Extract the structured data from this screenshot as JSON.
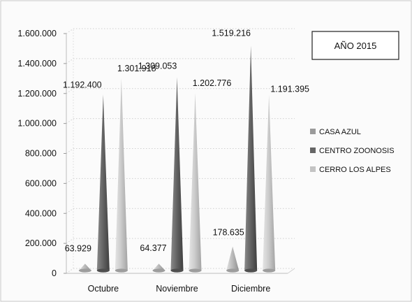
{
  "chart_data": {
    "type": "bar",
    "style": "3d-cone",
    "title": "AÑO 2015",
    "xlabel": "",
    "ylabel": "",
    "ylim": [
      0,
      1600000
    ],
    "yticks": [
      0,
      200000,
      400000,
      600000,
      800000,
      1000000,
      1200000,
      1400000,
      1600000
    ],
    "ytick_labels": [
      "0",
      "200.000",
      "400.000",
      "600.000",
      "800.000",
      "1.000.000",
      "1.200.000",
      "1.400.000",
      "1.600.000"
    ],
    "grid": true,
    "legend_position": "right",
    "categories": [
      "Octubre",
      "Noviembre",
      "Diciembre"
    ],
    "series": [
      {
        "name": "CASA AZUL",
        "color": "#aaaaaa",
        "values": [
          63929,
          64377,
          178635
        ],
        "labels": [
          "63.929",
          "64.377",
          "178.635"
        ]
      },
      {
        "name": "CENTRO ZOONOSIS",
        "color": "#6f6f6f",
        "values": [
          1192400,
          1309053,
          1519216
        ],
        "labels": [
          "1.192.400",
          "1.309.053",
          "1.519.216"
        ]
      },
      {
        "name": "CERRO LOS ALPES",
        "color": "#c6c6c6",
        "values": [
          1301918,
          1202776,
          1191395
        ],
        "labels": [
          "1.301.918",
          "1.202.776",
          "1.191.395"
        ]
      }
    ]
  }
}
